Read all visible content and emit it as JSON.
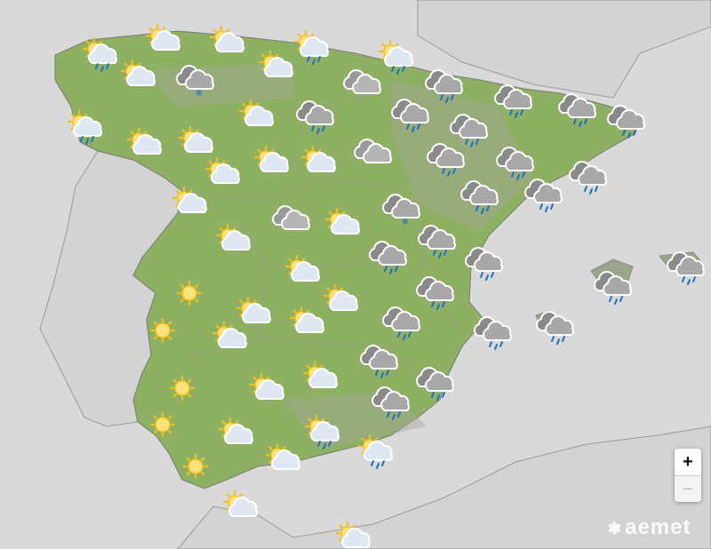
{
  "map": {
    "colors": {
      "sea": "#d9d9d9",
      "land_other": "#d3d3d3",
      "spain": "#8db062",
      "border": "#9a9a9a"
    },
    "icons": [
      "sun-cloud-rain",
      "sun-cloud",
      "sun-cloud",
      "sun-cloud-rain",
      "sun-cloud-rain",
      "sun-cloud",
      "cloud-snow",
      "sun-cloud",
      "cloud",
      "cloud-rain",
      "cloud-rain",
      "cloud-rain",
      "cloud-rain",
      "sun-cloud-rain",
      "sun-cloud",
      "sun-cloud",
      "sun-cloud",
      "cloud-rain",
      "cloud-rain",
      "cloud-rain",
      "cloud",
      "sun-cloud",
      "sun-cloud",
      "sun-cloud",
      "cloud-rain",
      "cloud-rain",
      "cloud-rain",
      "sun-cloud",
      "cloud-rain",
      "cloud-rain",
      "cloud-snow",
      "cloud",
      "sun-cloud",
      "sun-cloud",
      "cloud-rain",
      "cloud-rain",
      "cloud-rain",
      "sun-cloud",
      "sun",
      "cloud-rain",
      "cloud-rain",
      "cloud-rain",
      "sun-cloud",
      "sun",
      "sun-cloud",
      "sun-cloud",
      "cloud-rain",
      "cloud-rain",
      "cloud-rain",
      "sun-cloud",
      "cloud-rain",
      "sun-cloud",
      "cloud-rain",
      "sun",
      "sun-cloud",
      "cloud-rain",
      "sun",
      "sun-cloud",
      "sun-cloud-rain",
      "sun-cloud-rain",
      "sun-cloud",
      "sun",
      "sun-cloud",
      "sun-cloud"
    ]
  },
  "zoom": {
    "in_label": "+",
    "out_label": "−"
  },
  "logo": {
    "text": "aemet",
    "icon": "aemet-logo-icon"
  }
}
